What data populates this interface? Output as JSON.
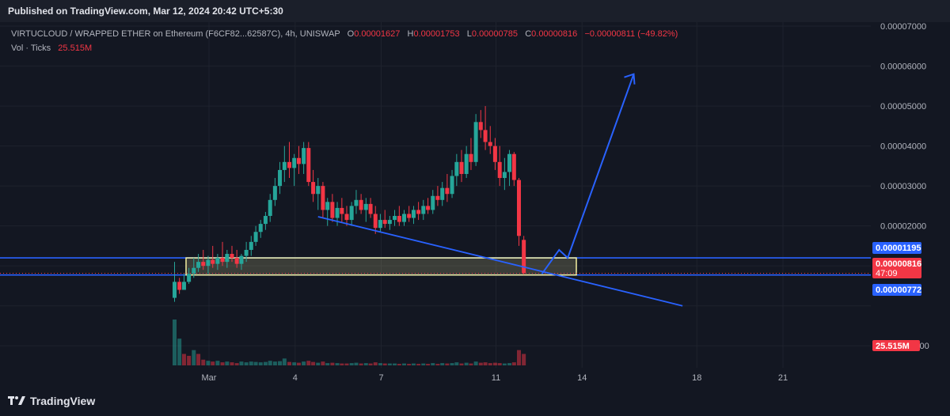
{
  "header": {
    "published": "Published on TradingView.com, Mar 12, 2024 20:42 UTC+5:30"
  },
  "legend": {
    "symbol": "VIRTUCLOUD / WRAPPED ETHER on Ethereum (F6CF82...62587C), 4h, UNISWAP",
    "o_label": "O",
    "o_value": "0.00001627",
    "h_label": "H",
    "h_value": "0.00001753",
    "l_label": "L",
    "l_value": "0.00000785",
    "c_label": "C",
    "c_value": "0.00000816",
    "change": "−0.00000811 (−49.82%)",
    "vol_label": "Vol · Ticks",
    "vol_value": "25.515M"
  },
  "footer": {
    "brand": "TradingView"
  },
  "colors": {
    "up": "#26a69a",
    "down": "#f23645",
    "line": "#2962ff",
    "zone": "#f5f0a0",
    "bg": "#131722"
  },
  "chart_data": {
    "type": "candlestick",
    "ylim": [
      -1.55e-05,
      7.1e-05
    ],
    "y_ticks": [
      "0.00007000",
      "0.00006000",
      "0.00005000",
      "0.00004000",
      "0.00003000",
      "0.00002000",
      "0.00001195",
      "0.00000816",
      "0.00000772",
      "-0.00001000"
    ],
    "y_tick_values": [
      7e-05,
      6e-05,
      5e-05,
      4e-05,
      3e-05,
      2e-05,
      1.195e-05,
      8.16e-06,
      7.72e-06,
      -1e-05
    ],
    "x_ticks": [
      {
        "label": "Mar",
        "day": 1
      },
      {
        "label": "4",
        "day": 4
      },
      {
        "label": "7",
        "day": 7
      },
      {
        "label": "11",
        "day": 11
      },
      {
        "label": "14",
        "day": 14
      },
      {
        "label": "18",
        "day": 18
      },
      {
        "label": "21",
        "day": 21
      }
    ],
    "price_labels": [
      {
        "text": "0.00001195",
        "value": 1.195e-05,
        "color": "#2962ff"
      },
      {
        "text": "0.00000816",
        "value": 8.16e-06,
        "color": "#f23645",
        "sub": "47:09"
      },
      {
        "text": "0.00000772",
        "value": 7.72e-06,
        "color": "#2962ff"
      }
    ],
    "volume_label": "25.515M",
    "horizontal_lines": [
      1.2e-05,
      7.72e-06
    ],
    "zone": {
      "from_day": 0.2,
      "to_day": 13.8,
      "low": 7.72e-06,
      "high": 1.2e-05
    },
    "trendline": [
      {
        "day": 4.8,
        "value": 2.23e-05
      },
      {
        "day": 17.5,
        "value": 0.0
      }
    ],
    "arrow_path": [
      {
        "day": 12.6,
        "value": 8e-06
      },
      {
        "day": 13.2,
        "value": 1.4e-05
      },
      {
        "day": 13.5,
        "value": 1.2e-05
      },
      {
        "day": 15.8,
        "value": 5.8e-05
      }
    ],
    "candles": [
      {
        "day": -0.2,
        "o": 2e-06,
        "h": 1.1e-05,
        "l": 1e-06,
        "c": 6e-06
      },
      {
        "day": -0.03,
        "o": 6e-06,
        "h": 7e-06,
        "l": 3e-06,
        "c": 4e-06
      },
      {
        "day": 0.13,
        "o": 4e-06,
        "h": 8e-06,
        "l": 4e-06,
        "c": 6e-06
      },
      {
        "day": 0.3,
        "o": 6e-06,
        "h": 9.5e-06,
        "l": 5.5e-06,
        "c": 8e-06
      },
      {
        "day": 0.47,
        "o": 8e-06,
        "h": 1.2e-05,
        "l": 7e-06,
        "c": 9.5e-06
      },
      {
        "day": 0.63,
        "o": 9.5e-06,
        "h": 1.3e-05,
        "l": 8.5e-06,
        "c": 1.1e-05
      },
      {
        "day": 0.8,
        "o": 1.1e-05,
        "h": 1.4e-05,
        "l": 9e-06,
        "c": 1e-05
      },
      {
        "day": 0.97,
        "o": 1e-05,
        "h": 1.25e-05,
        "l": 8e-06,
        "c": 1.15e-05
      },
      {
        "day": 1.13,
        "o": 1.15e-05,
        "h": 1.5e-05,
        "l": 9.5e-06,
        "c": 1.05e-05
      },
      {
        "day": 1.3,
        "o": 1.05e-05,
        "h": 1.3e-05,
        "l": 9e-06,
        "c": 1.2e-05
      },
      {
        "day": 1.47,
        "o": 1.2e-05,
        "h": 1.6e-05,
        "l": 1e-05,
        "c": 1.1e-05
      },
      {
        "day": 1.63,
        "o": 1.1e-05,
        "h": 1.4e-05,
        "l": 9.5e-06,
        "c": 1.3e-05
      },
      {
        "day": 1.8,
        "o": 1.3e-05,
        "h": 1.5e-05,
        "l": 1.1e-05,
        "c": 1.2e-05
      },
      {
        "day": 1.97,
        "o": 1.2e-05,
        "h": 1.4e-05,
        "l": 9.5e-06,
        "c": 1.05e-05
      },
      {
        "day": 2.13,
        "o": 1.05e-05,
        "h": 1.3e-05,
        "l": 9e-06,
        "c": 1.25e-05
      },
      {
        "day": 2.3,
        "o": 1.25e-05,
        "h": 1.6e-05,
        "l": 1.1e-05,
        "c": 1.4e-05
      },
      {
        "day": 2.47,
        "o": 1.4e-05,
        "h": 1.75e-05,
        "l": 1.25e-05,
        "c": 1.6e-05
      },
      {
        "day": 2.63,
        "o": 1.6e-05,
        "h": 2e-05,
        "l": 1.5e-05,
        "c": 1.85e-05
      },
      {
        "day": 2.8,
        "o": 1.85e-05,
        "h": 2.15e-05,
        "l": 1.7e-05,
        "c": 2.05e-05
      },
      {
        "day": 2.97,
        "o": 2.05e-05,
        "h": 2.35e-05,
        "l": 1.9e-05,
        "c": 2.25e-05
      },
      {
        "day": 3.13,
        "o": 2.25e-05,
        "h": 2.8e-05,
        "l": 2.1e-05,
        "c": 2.65e-05
      },
      {
        "day": 3.3,
        "o": 2.65e-05,
        "h": 3.2e-05,
        "l": 2.5e-05,
        "c": 3e-05
      },
      {
        "day": 3.47,
        "o": 3e-05,
        "h": 3.6e-05,
        "l": 2.8e-05,
        "c": 3.4e-05
      },
      {
        "day": 3.63,
        "o": 3.4e-05,
        "h": 4e-05,
        "l": 3.1e-05,
        "c": 3.6e-05
      },
      {
        "day": 3.8,
        "o": 3.6e-05,
        "h": 4.1e-05,
        "l": 3.2e-05,
        "c": 3.45e-05
      },
      {
        "day": 3.97,
        "o": 3.45e-05,
        "h": 3.8e-05,
        "l": 3e-05,
        "c": 3.7e-05
      },
      {
        "day": 4.13,
        "o": 3.7e-05,
        "h": 4e-05,
        "l": 3.3e-05,
        "c": 3.55e-05
      },
      {
        "day": 4.3,
        "o": 3.55e-05,
        "h": 4.1e-05,
        "l": 3.3e-05,
        "c": 3.95e-05
      },
      {
        "day": 4.47,
        "o": 3.95e-05,
        "h": 4.1e-05,
        "l": 3e-05,
        "c": 3.1e-05
      },
      {
        "day": 4.63,
        "o": 3.1e-05,
        "h": 3.4e-05,
        "l": 2.6e-05,
        "c": 2.8e-05
      },
      {
        "day": 4.8,
        "o": 2.8e-05,
        "h": 3.2e-05,
        "l": 2.4e-05,
        "c": 3e-05
      },
      {
        "day": 4.97,
        "o": 3e-05,
        "h": 3.1e-05,
        "l": 2.2e-05,
        "c": 2.4e-05
      },
      {
        "day": 5.13,
        "o": 2.4e-05,
        "h": 2.7e-05,
        "l": 2e-05,
        "c": 2.6e-05
      },
      {
        "day": 5.3,
        "o": 2.6e-05,
        "h": 2.8e-05,
        "l": 2.1e-05,
        "c": 2.2e-05
      },
      {
        "day": 5.47,
        "o": 2.2e-05,
        "h": 2.6e-05,
        "l": 2e-05,
        "c": 2.45e-05
      },
      {
        "day": 5.63,
        "o": 2.45e-05,
        "h": 2.7e-05,
        "l": 2.1e-05,
        "c": 2.3e-05
      },
      {
        "day": 5.8,
        "o": 2.3e-05,
        "h": 2.5e-05,
        "l": 2e-05,
        "c": 2.15e-05
      },
      {
        "day": 5.97,
        "o": 2.15e-05,
        "h": 2.6e-05,
        "l": 2e-05,
        "c": 2.5e-05
      },
      {
        "day": 6.13,
        "o": 2.5e-05,
        "h": 2.9e-05,
        "l": 2.3e-05,
        "c": 2.65e-05
      },
      {
        "day": 6.3,
        "o": 2.65e-05,
        "h": 2.8e-05,
        "l": 2.3e-05,
        "c": 2.4e-05
      },
      {
        "day": 6.47,
        "o": 2.4e-05,
        "h": 2.7e-05,
        "l": 2.1e-05,
        "c": 2.55e-05
      },
      {
        "day": 6.63,
        "o": 2.55e-05,
        "h": 2.7e-05,
        "l": 2.2e-05,
        "c": 2.3e-05
      },
      {
        "day": 6.8,
        "o": 2.3e-05,
        "h": 2.5e-05,
        "l": 1.8e-05,
        "c": 1.95e-05
      },
      {
        "day": 6.97,
        "o": 1.95e-05,
        "h": 2.3e-05,
        "l": 1.85e-05,
        "c": 2.15e-05
      },
      {
        "day": 7.13,
        "o": 2.15e-05,
        "h": 2.4e-05,
        "l": 1.95e-05,
        "c": 2.05e-05
      },
      {
        "day": 7.3,
        "o": 2.05e-05,
        "h": 2.25e-05,
        "l": 1.9e-05,
        "c": 2.15e-05
      },
      {
        "day": 7.47,
        "o": 2.15e-05,
        "h": 2.4e-05,
        "l": 2e-05,
        "c": 2.25e-05
      },
      {
        "day": 7.63,
        "o": 2.25e-05,
        "h": 2.5e-05,
        "l": 2e-05,
        "c": 2.1e-05
      },
      {
        "day": 7.8,
        "o": 2.1e-05,
        "h": 2.4e-05,
        "l": 2e-05,
        "c": 2.3e-05
      },
      {
        "day": 7.97,
        "o": 2.3e-05,
        "h": 2.5e-05,
        "l": 2.1e-05,
        "c": 2.2e-05
      },
      {
        "day": 8.13,
        "o": 2.2e-05,
        "h": 2.5e-05,
        "l": 2.05e-05,
        "c": 2.4e-05
      },
      {
        "day": 8.3,
        "o": 2.4e-05,
        "h": 2.6e-05,
        "l": 2.15e-05,
        "c": 2.3e-05
      },
      {
        "day": 8.47,
        "o": 2.3e-05,
        "h": 2.65e-05,
        "l": 2.15e-05,
        "c": 2.5e-05
      },
      {
        "day": 8.63,
        "o": 2.5e-05,
        "h": 2.7e-05,
        "l": 2.3e-05,
        "c": 2.4e-05
      },
      {
        "day": 8.8,
        "o": 2.4e-05,
        "h": 2.9e-05,
        "l": 2.3e-05,
        "c": 2.75e-05
      },
      {
        "day": 8.97,
        "o": 2.75e-05,
        "h": 3e-05,
        "l": 2.5e-05,
        "c": 2.65e-05
      },
      {
        "day": 9.13,
        "o": 2.65e-05,
        "h": 3.1e-05,
        "l": 2.5e-05,
        "c": 2.95e-05
      },
      {
        "day": 9.3,
        "o": 2.95e-05,
        "h": 3.3e-05,
        "l": 2.6e-05,
        "c": 2.8e-05
      },
      {
        "day": 9.47,
        "o": 2.8e-05,
        "h": 3.4e-05,
        "l": 2.7e-05,
        "c": 3.25e-05
      },
      {
        "day": 9.63,
        "o": 3.25e-05,
        "h": 3.8e-05,
        "l": 3e-05,
        "c": 3.6e-05
      },
      {
        "day": 9.8,
        "o": 3.6e-05,
        "h": 3.9e-05,
        "l": 3.1e-05,
        "c": 3.3e-05
      },
      {
        "day": 9.97,
        "o": 3.3e-05,
        "h": 4e-05,
        "l": 3.2e-05,
        "c": 3.8e-05
      },
      {
        "day": 10.13,
        "o": 3.8e-05,
        "h": 4.2e-05,
        "l": 3.4e-05,
        "c": 3.6e-05
      },
      {
        "day": 10.3,
        "o": 3.6e-05,
        "h": 4.8e-05,
        "l": 3.5e-05,
        "c": 4.6e-05
      },
      {
        "day": 10.47,
        "o": 4.6e-05,
        "h": 4.9e-05,
        "l": 4.2e-05,
        "c": 4.4e-05
      },
      {
        "day": 10.63,
        "o": 4.4e-05,
        "h": 5e-05,
        "l": 3.9e-05,
        "c": 4.1e-05
      },
      {
        "day": 10.8,
        "o": 4.1e-05,
        "h": 4.5e-05,
        "l": 3.8e-05,
        "c": 4e-05
      },
      {
        "day": 10.97,
        "o": 4e-05,
        "h": 4.2e-05,
        "l": 3.4e-05,
        "c": 3.6e-05
      },
      {
        "day": 11.13,
        "o": 3.6e-05,
        "h": 4e-05,
        "l": 3e-05,
        "c": 3.2e-05
      },
      {
        "day": 11.3,
        "o": 3.2e-05,
        "h": 3.7e-05,
        "l": 2.9e-05,
        "c": 3.35e-05
      },
      {
        "day": 11.47,
        "o": 3.35e-05,
        "h": 3.9e-05,
        "l": 3e-05,
        "c": 3.8e-05
      },
      {
        "day": 11.63,
        "o": 3.8e-05,
        "h": 3.85e-05,
        "l": 3e-05,
        "c": 3.15e-05
      },
      {
        "day": 11.8,
        "o": 3.15e-05,
        "h": 3.2e-05,
        "l": 1.5e-05,
        "c": 1.75e-05
      },
      {
        "day": 11.97,
        "o": 1.65e-05,
        "h": 1.75e-05,
        "l": 7.8e-06,
        "c": 8.2e-06
      }
    ],
    "volumes": [
      {
        "day": -0.2,
        "v": 1.2e-05,
        "up": true
      },
      {
        "day": -0.03,
        "v": 7e-06,
        "up": true
      },
      {
        "day": 0.13,
        "v": 3e-06,
        "up": false
      },
      {
        "day": 0.3,
        "v": 2.5e-06,
        "up": false
      },
      {
        "day": 0.47,
        "v": 4e-06,
        "up": true
      },
      {
        "day": 0.63,
        "v": 3e-06,
        "up": false
      },
      {
        "day": 0.8,
        "v": 1.5e-06,
        "up": false
      },
      {
        "day": 0.97,
        "v": 1.2e-06,
        "up": true
      },
      {
        "day": 1.13,
        "v": 1e-06,
        "up": false
      },
      {
        "day": 1.3,
        "v": 1.2e-06,
        "up": true
      },
      {
        "day": 1.47,
        "v": 8e-07,
        "up": false
      },
      {
        "day": 1.63,
        "v": 1e-06,
        "up": true
      },
      {
        "day": 1.8,
        "v": 8e-07,
        "up": false
      },
      {
        "day": 1.97,
        "v": 6e-07,
        "up": false
      },
      {
        "day": 2.13,
        "v": 1e-06,
        "up": true
      },
      {
        "day": 2.3,
        "v": 8e-07,
        "up": true
      },
      {
        "day": 2.47,
        "v": 1e-06,
        "up": true
      },
      {
        "day": 2.63,
        "v": 9e-07,
        "up": true
      },
      {
        "day": 2.8,
        "v": 8e-07,
        "up": true
      },
      {
        "day": 2.97,
        "v": 9e-07,
        "up": true
      },
      {
        "day": 3.13,
        "v": 1.2e-06,
        "up": true
      },
      {
        "day": 3.3,
        "v": 1e-06,
        "up": true
      },
      {
        "day": 3.47,
        "v": 1.1e-06,
        "up": true
      },
      {
        "day": 3.63,
        "v": 1.8e-06,
        "up": true
      },
      {
        "day": 3.8,
        "v": 9e-07,
        "up": false
      },
      {
        "day": 3.97,
        "v": 8e-07,
        "up": true
      },
      {
        "day": 4.13,
        "v": 7e-07,
        "up": false
      },
      {
        "day": 4.3,
        "v": 1e-06,
        "up": true
      },
      {
        "day": 4.47,
        "v": 1.2e-06,
        "up": false
      },
      {
        "day": 4.63,
        "v": 9e-07,
        "up": false
      },
      {
        "day": 4.8,
        "v": 7e-07,
        "up": true
      },
      {
        "day": 4.97,
        "v": 1e-06,
        "up": false
      },
      {
        "day": 5.13,
        "v": 6e-07,
        "up": true
      },
      {
        "day": 5.3,
        "v": 7e-07,
        "up": false
      },
      {
        "day": 5.47,
        "v": 6e-07,
        "up": true
      },
      {
        "day": 5.63,
        "v": 5e-07,
        "up": false
      },
      {
        "day": 5.8,
        "v": 5e-07,
        "up": false
      },
      {
        "day": 5.97,
        "v": 6e-07,
        "up": true
      },
      {
        "day": 6.13,
        "v": 7e-07,
        "up": true
      },
      {
        "day": 6.3,
        "v": 5e-07,
        "up": false
      },
      {
        "day": 6.47,
        "v": 6e-07,
        "up": true
      },
      {
        "day": 6.63,
        "v": 5e-07,
        "up": false
      },
      {
        "day": 6.8,
        "v": 8e-07,
        "up": false
      },
      {
        "day": 6.97,
        "v": 6e-07,
        "up": true
      },
      {
        "day": 7.13,
        "v": 5e-07,
        "up": false
      },
      {
        "day": 7.3,
        "v": 5e-07,
        "up": true
      },
      {
        "day": 7.47,
        "v": 5e-07,
        "up": true
      },
      {
        "day": 7.63,
        "v": 4e-07,
        "up": false
      },
      {
        "day": 7.8,
        "v": 5e-07,
        "up": true
      },
      {
        "day": 7.97,
        "v": 4e-07,
        "up": false
      },
      {
        "day": 8.13,
        "v": 5e-07,
        "up": true
      },
      {
        "day": 8.3,
        "v": 4e-07,
        "up": false
      },
      {
        "day": 8.47,
        "v": 5e-07,
        "up": true
      },
      {
        "day": 8.63,
        "v": 4e-07,
        "up": false
      },
      {
        "day": 8.8,
        "v": 6e-07,
        "up": true
      },
      {
        "day": 8.97,
        "v": 4e-07,
        "up": false
      },
      {
        "day": 9.13,
        "v": 6e-07,
        "up": true
      },
      {
        "day": 9.3,
        "v": 5e-07,
        "up": false
      },
      {
        "day": 9.47,
        "v": 6e-07,
        "up": true
      },
      {
        "day": 9.63,
        "v": 8e-07,
        "up": true
      },
      {
        "day": 9.8,
        "v": 5e-07,
        "up": false
      },
      {
        "day": 9.97,
        "v": 7e-07,
        "up": true
      },
      {
        "day": 10.13,
        "v": 5e-07,
        "up": false
      },
      {
        "day": 10.3,
        "v": 1e-06,
        "up": true
      },
      {
        "day": 10.47,
        "v": 7e-07,
        "up": false
      },
      {
        "day": 10.63,
        "v": 8e-07,
        "up": false
      },
      {
        "day": 10.8,
        "v": 6e-07,
        "up": false
      },
      {
        "day": 10.97,
        "v": 7e-07,
        "up": false
      },
      {
        "day": 11.13,
        "v": 6e-07,
        "up": false
      },
      {
        "day": 11.3,
        "v": 5e-07,
        "up": true
      },
      {
        "day": 11.47,
        "v": 6e-07,
        "up": true
      },
      {
        "day": 11.63,
        "v": 8e-07,
        "up": false
      },
      {
        "day": 11.8,
        "v": 4e-06,
        "up": false
      },
      {
        "day": 11.97,
        "v": 3e-06,
        "up": false
      }
    ],
    "volume_scale_max": 1.2e-05
  }
}
